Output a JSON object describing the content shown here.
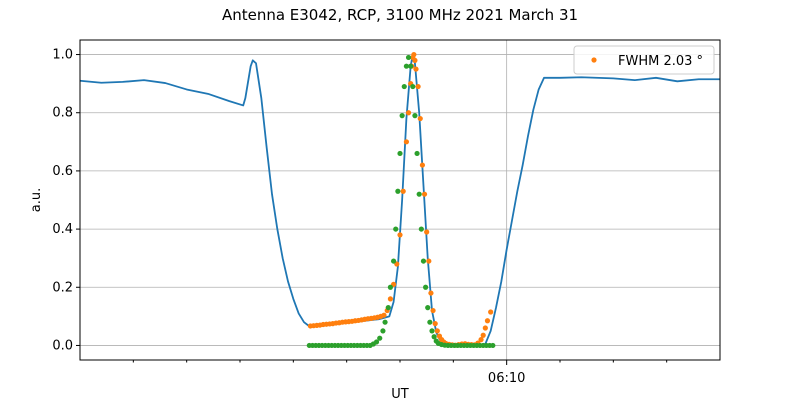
{
  "chart_data": {
    "type": "line",
    "title": "Antenna E3042, RCP, 3100 MHz 2021 March 31",
    "xlabel": "UT",
    "ylabel": "a.u.",
    "xlim": [
      -40,
      20
    ],
    "ylim": [
      -0.05,
      1.05
    ],
    "x_unit": "minutes relative to 06:10 UT",
    "x_major_ticks": [
      {
        "x": 0,
        "label": "06:10"
      }
    ],
    "x_minor_ticks": [
      -35,
      -30,
      -25,
      -20,
      -15,
      -10,
      -5,
      5,
      10,
      15
    ],
    "y_ticks": [
      0.0,
      0.2,
      0.4,
      0.6,
      0.8,
      1.0
    ],
    "y_tick_labels": [
      "0.0",
      "0.2",
      "0.4",
      "0.6",
      "0.8",
      "1.0"
    ],
    "grid": true,
    "legend_position": "top-right",
    "colors": {
      "measured": "#1f77b4",
      "fit": "#ff7f0e",
      "model": "#2ca02c"
    },
    "series": [
      {
        "name": "",
        "style": "line",
        "color": "#1f77b4",
        "points": [
          [
            -40,
            0.91
          ],
          [
            -38,
            0.903
          ],
          [
            -36,
            0.906
          ],
          [
            -34,
            0.912
          ],
          [
            -32,
            0.902
          ],
          [
            -30,
            0.88
          ],
          [
            -28,
            0.865
          ],
          [
            -26,
            0.84
          ],
          [
            -24.7,
            0.825
          ],
          [
            -24.5,
            0.85
          ],
          [
            -24.0,
            0.96
          ],
          [
            -23.8,
            0.98
          ],
          [
            -23.5,
            0.97
          ],
          [
            -23.0,
            0.85
          ],
          [
            -22.5,
            0.68
          ],
          [
            -22.0,
            0.52
          ],
          [
            -21.5,
            0.4
          ],
          [
            -21.0,
            0.3
          ],
          [
            -20.5,
            0.22
          ],
          [
            -20.0,
            0.16
          ],
          [
            -19.5,
            0.11
          ],
          [
            -19.0,
            0.08
          ],
          [
            -18.5,
            0.066
          ],
          [
            -18.0,
            0.07
          ],
          [
            -16.0,
            0.074
          ],
          [
            -14.0,
            0.082
          ],
          [
            -12.0,
            0.09
          ],
          [
            -11.0,
            0.1
          ],
          [
            -10.6,
            0.15
          ],
          [
            -10.2,
            0.27
          ],
          [
            -9.8,
            0.5
          ],
          [
            -9.4,
            0.78
          ],
          [
            -9.0,
            0.96
          ],
          [
            -8.8,
            1.0
          ],
          [
            -8.6,
            0.97
          ],
          [
            -8.2,
            0.8
          ],
          [
            -7.8,
            0.55
          ],
          [
            -7.4,
            0.3
          ],
          [
            -7.0,
            0.12
          ],
          [
            -6.6,
            0.045
          ],
          [
            -6.2,
            0.015
          ],
          [
            -5.8,
            0.003
          ],
          [
            -5.0,
            0.0
          ],
          [
            -3.5,
            0.0
          ],
          [
            -2.0,
            0.005
          ],
          [
            -1.5,
            0.05
          ],
          [
            -1.0,
            0.13
          ],
          [
            -0.5,
            0.22
          ],
          [
            0.0,
            0.33
          ],
          [
            0.5,
            0.43
          ],
          [
            1.0,
            0.53
          ],
          [
            1.5,
            0.62
          ],
          [
            2.0,
            0.72
          ],
          [
            2.5,
            0.81
          ],
          [
            3.0,
            0.88
          ],
          [
            3.5,
            0.92
          ],
          [
            5.0,
            0.92
          ],
          [
            7.0,
            0.922
          ],
          [
            10.0,
            0.918
          ],
          [
            12.0,
            0.912
          ],
          [
            14.0,
            0.92
          ],
          [
            16.0,
            0.908
          ],
          [
            18.0,
            0.915
          ],
          [
            20.0,
            0.915
          ]
        ]
      },
      {
        "name": "FWHM 2.03 °",
        "style": "markers",
        "color": "#ff7f0e",
        "points": [
          [
            -18.4,
            0.067
          ],
          [
            -18.1,
            0.068
          ],
          [
            -17.8,
            0.069
          ],
          [
            -17.5,
            0.07
          ],
          [
            -17.2,
            0.072
          ],
          [
            -16.9,
            0.073
          ],
          [
            -16.6,
            0.074
          ],
          [
            -16.3,
            0.075
          ],
          [
            -16.0,
            0.077
          ],
          [
            -15.7,
            0.078
          ],
          [
            -15.4,
            0.08
          ],
          [
            -15.1,
            0.081
          ],
          [
            -14.8,
            0.082
          ],
          [
            -14.5,
            0.083
          ],
          [
            -14.2,
            0.085
          ],
          [
            -13.9,
            0.086
          ],
          [
            -13.6,
            0.088
          ],
          [
            -13.3,
            0.09
          ],
          [
            -13.0,
            0.092
          ],
          [
            -12.7,
            0.093
          ],
          [
            -12.4,
            0.095
          ],
          [
            -12.1,
            0.097
          ],
          [
            -11.8,
            0.1
          ],
          [
            -11.5,
            0.104
          ],
          [
            -11.2,
            0.12
          ],
          [
            -10.9,
            0.16
          ],
          [
            -10.6,
            0.21
          ],
          [
            -10.3,
            0.28
          ],
          [
            -10.0,
            0.38
          ],
          [
            -9.7,
            0.53
          ],
          [
            -9.4,
            0.7
          ],
          [
            -9.2,
            0.8
          ],
          [
            -9.0,
            0.9
          ],
          [
            -8.9,
            0.96
          ],
          [
            -8.8,
            0.99
          ],
          [
            -8.7,
            1.0
          ],
          [
            -8.6,
            0.98
          ],
          [
            -8.5,
            0.95
          ],
          [
            -8.3,
            0.89
          ],
          [
            -8.1,
            0.78
          ],
          [
            -7.9,
            0.62
          ],
          [
            -7.7,
            0.52
          ],
          [
            -7.5,
            0.39
          ],
          [
            -7.3,
            0.29
          ],
          [
            -7.1,
            0.18
          ],
          [
            -6.9,
            0.12
          ],
          [
            -6.7,
            0.075
          ],
          [
            -6.5,
            0.05
          ],
          [
            -6.3,
            0.032
          ],
          [
            -6.1,
            0.02
          ],
          [
            -5.9,
            0.012
          ],
          [
            -5.7,
            0.007
          ],
          [
            -5.4,
            0.004
          ],
          [
            -5.1,
            0.002
          ],
          [
            -4.8,
            0.001
          ],
          [
            -4.5,
            0.003
          ],
          [
            -4.2,
            0.005
          ],
          [
            -3.9,
            0.006
          ],
          [
            -3.6,
            0.004
          ],
          [
            -3.3,
            0.003
          ],
          [
            -3.0,
            0.002
          ],
          [
            -2.7,
            0.008
          ],
          [
            -2.4,
            0.02
          ],
          [
            -2.2,
            0.035
          ],
          [
            -2.0,
            0.06
          ],
          [
            -1.8,
            0.085
          ],
          [
            -1.5,
            0.115
          ]
        ]
      },
      {
        "name": "",
        "style": "markers",
        "color": "#2ca02c",
        "points": [
          [
            -18.5,
            0.0
          ],
          [
            -18.2,
            0.0
          ],
          [
            -17.9,
            0.0
          ],
          [
            -17.6,
            0.0
          ],
          [
            -17.3,
            0.0
          ],
          [
            -17.0,
            0.0
          ],
          [
            -16.7,
            0.0
          ],
          [
            -16.4,
            0.0
          ],
          [
            -16.1,
            0.0
          ],
          [
            -15.8,
            0.0
          ],
          [
            -15.5,
            0.0
          ],
          [
            -15.2,
            0.0
          ],
          [
            -14.9,
            0.0
          ],
          [
            -14.6,
            0.0
          ],
          [
            -14.3,
            0.0
          ],
          [
            -14.0,
            0.0
          ],
          [
            -13.7,
            0.0
          ],
          [
            -13.4,
            0.0
          ],
          [
            -13.1,
            0.0
          ],
          [
            -12.8,
            0.0
          ],
          [
            -12.5,
            0.005
          ],
          [
            -12.2,
            0.012
          ],
          [
            -11.9,
            0.025
          ],
          [
            -11.6,
            0.05
          ],
          [
            -11.4,
            0.08
          ],
          [
            -11.1,
            0.13
          ],
          [
            -10.9,
            0.2
          ],
          [
            -10.6,
            0.29
          ],
          [
            -10.4,
            0.4
          ],
          [
            -10.2,
            0.53
          ],
          [
            -10.0,
            0.66
          ],
          [
            -9.8,
            0.79
          ],
          [
            -9.6,
            0.89
          ],
          [
            -9.4,
            0.96
          ],
          [
            -9.2,
            0.99
          ],
          [
            -9.0,
            0.96
          ],
          [
            -8.8,
            0.89
          ],
          [
            -8.6,
            0.79
          ],
          [
            -8.4,
            0.66
          ],
          [
            -8.2,
            0.52
          ],
          [
            -8.0,
            0.4
          ],
          [
            -7.8,
            0.29
          ],
          [
            -7.6,
            0.2
          ],
          [
            -7.4,
            0.13
          ],
          [
            -7.2,
            0.08
          ],
          [
            -7.0,
            0.05
          ],
          [
            -6.8,
            0.03
          ],
          [
            -6.6,
            0.015
          ],
          [
            -6.4,
            0.007
          ],
          [
            -6.1,
            0.003
          ],
          [
            -5.8,
            0.001
          ],
          [
            -5.5,
            0.0
          ],
          [
            -5.2,
            0.0
          ],
          [
            -4.9,
            0.0
          ],
          [
            -4.6,
            0.0
          ],
          [
            -4.3,
            0.0
          ],
          [
            -4.0,
            0.0
          ],
          [
            -3.7,
            0.0
          ],
          [
            -3.4,
            0.0
          ],
          [
            -3.1,
            0.0
          ],
          [
            -2.8,
            0.0
          ],
          [
            -2.5,
            0.0
          ],
          [
            -2.2,
            0.0
          ],
          [
            -1.9,
            0.0
          ],
          [
            -1.6,
            0.0
          ],
          [
            -1.3,
            0.0
          ]
        ]
      }
    ]
  }
}
